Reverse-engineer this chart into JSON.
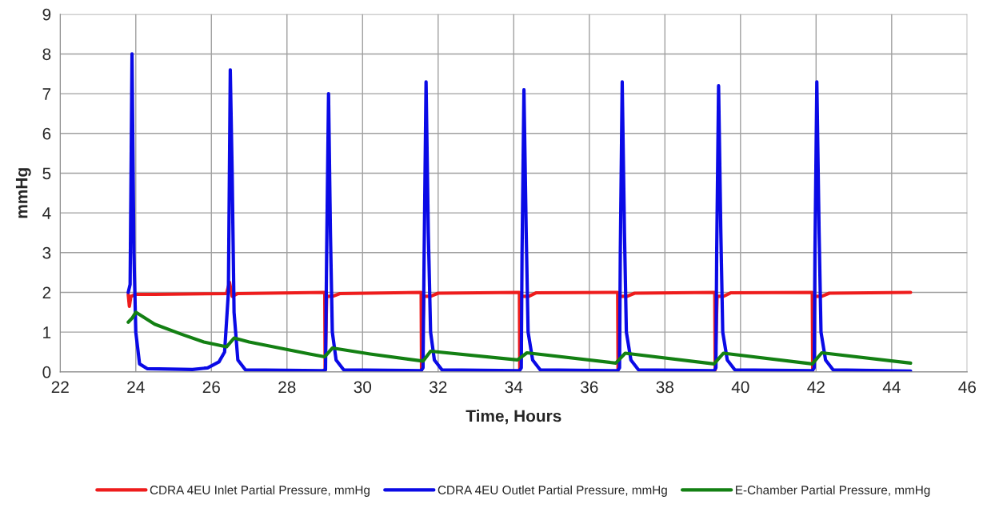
{
  "chart_data": {
    "type": "line",
    "xlabel": "Time, Hours",
    "ylabel": "mmHg",
    "xlim": [
      22,
      46
    ],
    "xticks": [
      22,
      24,
      26,
      28,
      30,
      32,
      34,
      36,
      38,
      40,
      42,
      44,
      46
    ],
    "ylim": [
      0,
      9
    ],
    "yticks": [
      0,
      1,
      2,
      3,
      4,
      5,
      6,
      7,
      8,
      9
    ],
    "grid": true,
    "legend": "bottom",
    "marker": "none",
    "line_style": "solid",
    "series": [
      {
        "name": "CDRA 4EU Inlet Partial Pressure, mmHg",
        "color": "#ee1c1c",
        "x": [
          23.8,
          23.83,
          23.87,
          24.0,
          24.5,
          26.4,
          26.48,
          26.55,
          26.7,
          29.0,
          29.01,
          29.05,
          29.2,
          29.4,
          31.55,
          31.56,
          31.62,
          31.8,
          32.0,
          34.15,
          34.16,
          34.2,
          34.4,
          34.6,
          36.75,
          36.76,
          36.8,
          37.0,
          37.2,
          39.32,
          39.33,
          39.38,
          39.55,
          39.75,
          41.9,
          41.91,
          41.96,
          42.15,
          42.35,
          44.5
        ],
        "values": [
          1.95,
          1.65,
          1.9,
          1.95,
          1.95,
          1.97,
          2.25,
          1.9,
          1.97,
          2.0,
          0.05,
          1.9,
          1.9,
          1.97,
          2.0,
          0.05,
          1.9,
          1.9,
          1.98,
          2.0,
          0.05,
          1.9,
          1.9,
          1.99,
          2.0,
          0.05,
          1.9,
          1.9,
          1.98,
          2.0,
          0.05,
          1.9,
          1.9,
          1.99,
          2.0,
          0.05,
          1.9,
          1.9,
          1.98,
          2.0
        ]
      },
      {
        "name": "CDRA 4EU Outlet Partial Pressure, mmHg",
        "color": "#0a0ae6",
        "x": [
          23.8,
          23.85,
          23.9,
          23.95,
          24.0,
          24.05,
          24.1,
          24.3,
          25.5,
          25.9,
          26.2,
          26.35,
          26.45,
          26.5,
          26.55,
          26.6,
          26.7,
          26.9,
          28.95,
          29.02,
          29.05,
          29.1,
          29.15,
          29.2,
          29.3,
          29.5,
          31.55,
          31.6,
          31.63,
          31.68,
          31.74,
          31.8,
          31.9,
          32.1,
          34.15,
          34.2,
          34.22,
          34.27,
          34.33,
          34.38,
          34.5,
          34.7,
          36.75,
          36.8,
          36.82,
          36.87,
          36.93,
          36.98,
          37.1,
          37.3,
          39.3,
          39.35,
          39.37,
          39.42,
          39.48,
          39.53,
          39.65,
          39.85,
          41.9,
          41.95,
          41.97,
          42.02,
          42.08,
          42.13,
          42.25,
          42.45,
          44.5
        ],
        "values": [
          2.0,
          2.2,
          8.0,
          3.0,
          1.0,
          0.6,
          0.2,
          0.08,
          0.06,
          0.1,
          0.25,
          0.5,
          2.0,
          7.6,
          5.0,
          1.5,
          0.3,
          0.05,
          0.03,
          0.05,
          3,
          7.0,
          3.5,
          1.0,
          0.3,
          0.05,
          0.03,
          0.1,
          3,
          7.3,
          3.5,
          1.0,
          0.3,
          0.05,
          0.03,
          0.1,
          3,
          7.1,
          3.5,
          1.0,
          0.3,
          0.05,
          0.03,
          0.1,
          3,
          7.3,
          3.5,
          1.0,
          0.3,
          0.05,
          0.03,
          0.1,
          3,
          7.2,
          3.5,
          1.0,
          0.3,
          0.05,
          0.03,
          0.1,
          3,
          7.3,
          3.5,
          1.0,
          0.3,
          0.05,
          0.02
        ]
      },
      {
        "name": "E-Chamber Partial Pressure, mmHg",
        "color": "#138013",
        "x": [
          23.8,
          23.9,
          24.0,
          24.5,
          25.2,
          25.8,
          26.4,
          26.6,
          27.0,
          27.8,
          28.6,
          29.0,
          29.2,
          30.2,
          31.6,
          31.8,
          34.1,
          34.35,
          36.7,
          36.95,
          39.3,
          39.55,
          41.9,
          42.15,
          44.5
        ],
        "values": [
          1.25,
          1.35,
          1.5,
          1.2,
          0.95,
          0.75,
          0.63,
          0.85,
          0.75,
          0.6,
          0.45,
          0.38,
          0.6,
          0.45,
          0.27,
          0.52,
          0.3,
          0.48,
          0.22,
          0.47,
          0.2,
          0.47,
          0.2,
          0.48,
          0.22
        ]
      }
    ]
  }
}
